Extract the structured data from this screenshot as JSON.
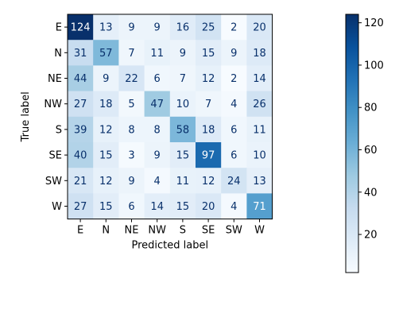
{
  "chart_data": {
    "type": "heatmap",
    "title": "",
    "xlabel": "Predicted label",
    "ylabel": "True label",
    "x_categories": [
      "E",
      "N",
      "NE",
      "NW",
      "S",
      "SE",
      "SW",
      "W"
    ],
    "y_categories": [
      "E",
      "N",
      "NE",
      "NW",
      "S",
      "SE",
      "SW",
      "W"
    ],
    "values": [
      [
        124,
        13,
        9,
        9,
        16,
        25,
        2,
        20
      ],
      [
        31,
        57,
        7,
        11,
        9,
        15,
        9,
        18
      ],
      [
        44,
        9,
        22,
        6,
        7,
        12,
        2,
        14
      ],
      [
        27,
        18,
        5,
        47,
        10,
        7,
        4,
        26
      ],
      [
        39,
        12,
        8,
        8,
        58,
        18,
        6,
        11
      ],
      [
        40,
        15,
        3,
        9,
        15,
        97,
        6,
        10
      ],
      [
        21,
        12,
        9,
        4,
        11,
        12,
        24,
        13
      ],
      [
        27,
        15,
        6,
        14,
        15,
        20,
        4,
        71
      ]
    ],
    "colormap": "Blues",
    "value_range": [
      2,
      124
    ],
    "colorbar_ticks": [
      20,
      40,
      60,
      80,
      100,
      120
    ],
    "grid": false
  }
}
